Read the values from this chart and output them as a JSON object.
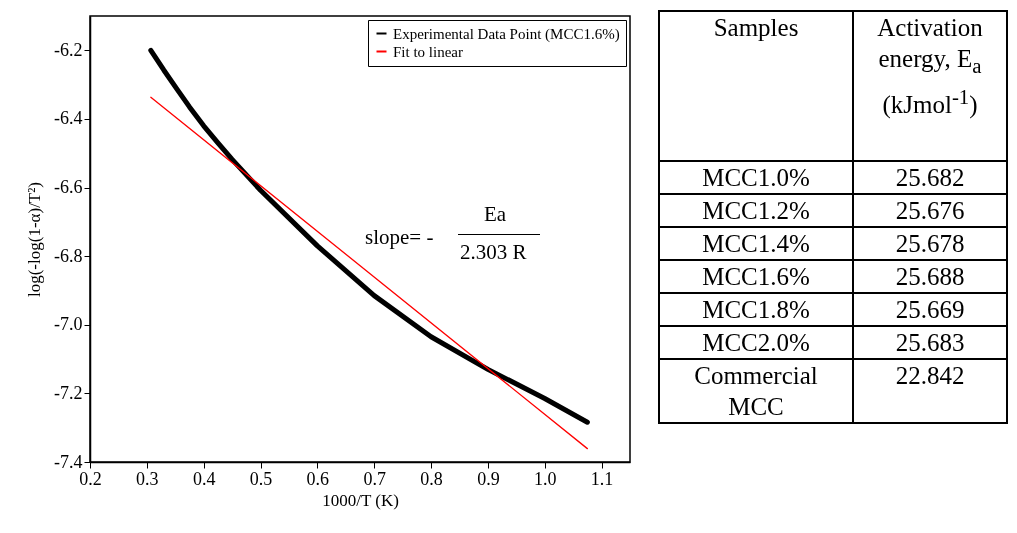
{
  "chart_data": [
    {
      "type": "line",
      "xlabel": "1000/T (K)",
      "ylabel": "log(-log(1-α)/T²)",
      "xlim": [
        0.2,
        1.15
      ],
      "ylim": [
        -7.4,
        -6.1
      ],
      "xticks": [
        0.2,
        0.3,
        0.4,
        0.5,
        0.6,
        0.7,
        0.8,
        0.9,
        {
          "value": 1,
          "label": "1.0"
        },
        1.1
      ],
      "yticks": [
        -7.4,
        -7.2,
        {
          "value": -7,
          "label": "-7.0"
        },
        -6.8,
        -6.6,
        -6.4,
        -6.2
      ],
      "grid": false,
      "legend": "top right",
      "annotations": [
        "slope= -",
        "Ea",
        "2.303 R"
      ],
      "series": [
        {
          "name": "Experimental Data Point (MCC1.6%)",
          "color": "#000000",
          "x": [
            0.307,
            0.33,
            0.353,
            0.375,
            0.4,
            0.425,
            0.45,
            0.5,
            0.6,
            0.7,
            0.8,
            0.9,
            1.0,
            1.075
          ],
          "values": [
            -6.2,
            -6.258,
            -6.313,
            -6.365,
            -6.42,
            -6.47,
            -6.518,
            -6.608,
            -6.77,
            -6.915,
            -7.035,
            -7.13,
            -7.215,
            -7.284
          ]
        },
        {
          "name": "Fit to linear",
          "color": "#ff0000",
          "type": "line",
          "x": [
            0.307,
            1.075
          ],
          "values": [
            -6.337,
            -7.361
          ]
        }
      ]
    },
    {
      "type": "other",
      "annotations": [
        "Samples",
        "Activation energy, E$_{a}$ (kJmol$^{-1}$)",
        "MCC1.0%",
        "25.682",
        "MCC1.2%",
        "25.676",
        "MCC1.4%",
        "25.678",
        "MCC1.6%",
        "25.688",
        "MCC1.8%",
        "25.669",
        "MCC2.0%",
        "25.683",
        "Commercial MCC",
        "22.842"
      ]
    }
  ]
}
